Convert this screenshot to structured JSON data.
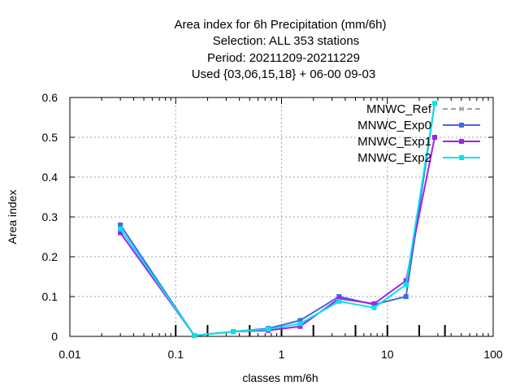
{
  "chart_data": {
    "type": "line",
    "title_lines": [
      "Area index  for 6h Precipitation (mm/6h)",
      "Selection: ALL    353 stations",
      "Period: 20211209-20211229",
      "Used {03,06,15,18} + 06-00 09-03"
    ],
    "xlabel": "classes mm/6h",
    "ylabel": "Area index",
    "x_scale": "log",
    "xlim": [
      0.01,
      100
    ],
    "ylim": [
      0,
      0.6
    ],
    "grid": true,
    "legend_position": "top-right",
    "x_ticks": [
      {
        "value": 0.01,
        "label": "0.01"
      },
      {
        "value": 0.1,
        "label": "0.1"
      },
      {
        "value": 1,
        "label": "1"
      },
      {
        "value": 10,
        "label": "10"
      },
      {
        "value": 100,
        "label": "100"
      }
    ],
    "y_ticks": [
      {
        "value": 0,
        "label": "0"
      },
      {
        "value": 0.1,
        "label": "0.1"
      },
      {
        "value": 0.2,
        "label": "0.2"
      },
      {
        "value": 0.3,
        "label": "0.3"
      },
      {
        "value": 0.4,
        "label": "0.4"
      },
      {
        "value": 0.5,
        "label": "0.5"
      },
      {
        "value": 0.6,
        "label": "0.6"
      }
    ],
    "class_boundaries": [
      0.1,
      0.2,
      0.5,
      1,
      2,
      5,
      10,
      20,
      35
    ],
    "x": [
      0.03,
      0.15,
      0.35,
      0.75,
      1.5,
      3.5,
      7.5,
      15,
      28
    ],
    "series": [
      {
        "name": "MNWC_Ref",
        "color": "#a0a0a0",
        "dashed": true,
        "values": [
          null,
          null,
          null,
          null,
          null,
          null,
          null,
          null,
          0.585
        ]
      },
      {
        "name": "MNWC_Exp0",
        "color": "#4169e1",
        "dashed": false,
        "values": [
          0.28,
          0.002,
          0.012,
          0.02,
          0.04,
          0.1,
          0.08,
          0.1,
          0.585
        ]
      },
      {
        "name": "MNWC_Exp1",
        "color": "#a020f0",
        "dashed": false,
        "values": [
          0.26,
          0.002,
          0.012,
          0.015,
          0.025,
          0.095,
          0.082,
          0.14,
          0.5
        ]
      },
      {
        "name": "MNWC_Exp2",
        "color": "#00e5e5",
        "dashed": false,
        "values": [
          0.27,
          0.002,
          0.012,
          0.018,
          0.032,
          0.088,
          0.072,
          0.13,
          0.585
        ]
      }
    ]
  }
}
